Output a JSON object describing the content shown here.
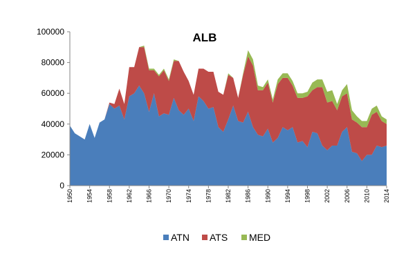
{
  "chart_data": {
    "type": "area",
    "stacked": true,
    "title": "ALB",
    "xlabel": "",
    "ylabel": "",
    "ylim": [
      0,
      100000
    ],
    "y_ticks": [
      "0",
      "20000",
      "40000",
      "60000",
      "80000",
      "100000"
    ],
    "x_ticks": [
      "1950",
      "1954",
      "1958",
      "1962",
      "1966",
      "1970",
      "1974",
      "1978",
      "1982",
      "1986",
      "1990",
      "1994",
      "1998",
      "2002",
      "2006",
      "2010",
      "2014"
    ],
    "x": [
      1950,
      1951,
      1952,
      1953,
      1954,
      1955,
      1956,
      1957,
      1958,
      1959,
      1960,
      1961,
      1962,
      1963,
      1964,
      1965,
      1966,
      1967,
      1968,
      1969,
      1970,
      1971,
      1972,
      1973,
      1974,
      1975,
      1976,
      1977,
      1978,
      1979,
      1980,
      1981,
      1982,
      1983,
      1984,
      1985,
      1986,
      1987,
      1988,
      1989,
      1990,
      1991,
      1992,
      1993,
      1994,
      1995,
      1996,
      1997,
      1998,
      1999,
      2000,
      2001,
      2002,
      2003,
      2004,
      2005,
      2006,
      2007,
      2008,
      2009,
      2010,
      2011,
      2012,
      2013,
      2014
    ],
    "grid": false,
    "legend_position": "bottom",
    "series": [
      {
        "name": "ATN",
        "color": "#4a7ebb",
        "values": [
          39000,
          34000,
          32000,
          30000,
          40000,
          31000,
          41000,
          43000,
          53000,
          50000,
          52000,
          43000,
          58000,
          60000,
          65000,
          60000,
          48000,
          60000,
          45000,
          47000,
          46000,
          57000,
          49000,
          46000,
          50000,
          42000,
          58000,
          55000,
          50000,
          51000,
          38000,
          35000,
          43000,
          52000,
          42000,
          41000,
          48000,
          38000,
          33000,
          32000,
          37000,
          28000,
          31000,
          38000,
          36000,
          38000,
          28000,
          29000,
          25000,
          35000,
          34000,
          26000,
          23000,
          26000,
          26000,
          35000,
          38000,
          22000,
          21000,
          16000,
          20000,
          20000,
          26000,
          25000,
          26000
        ]
      },
      {
        "name": "ATS",
        "color": "#be4b48",
        "values": [
          0,
          0,
          0,
          0,
          0,
          0,
          0,
          0,
          1000,
          3000,
          11000,
          10000,
          19000,
          17000,
          25000,
          30000,
          27000,
          15000,
          26000,
          28000,
          22000,
          24000,
          32000,
          28000,
          18000,
          17000,
          18000,
          21000,
          24000,
          23000,
          23000,
          24000,
          29000,
          18000,
          15000,
          31000,
          36000,
          40000,
          29000,
          30000,
          30000,
          26000,
          35000,
          32000,
          34000,
          27000,
          29000,
          28000,
          33000,
          27000,
          30000,
          38000,
          31000,
          29000,
          23000,
          23000,
          22000,
          21000,
          20000,
          22000,
          18000,
          26000,
          22000,
          17000,
          14000
        ]
      },
      {
        "name": "MED",
        "color": "#98b954",
        "values": [
          0,
          0,
          0,
          0,
          0,
          0,
          0,
          0,
          0,
          0,
          0,
          0,
          0,
          0,
          0,
          1000,
          1000,
          1000,
          1000,
          1000,
          1000,
          1000,
          0,
          0,
          0,
          0,
          0,
          0,
          0,
          0,
          0,
          0,
          1000,
          0,
          0,
          1000,
          4000,
          4000,
          3000,
          2000,
          2000,
          2000,
          3000,
          3000,
          3000,
          3000,
          3000,
          3000,
          3000,
          5000,
          5000,
          5000,
          7000,
          7000,
          4000,
          4000,
          6000,
          6000,
          4000,
          4000,
          4000,
          4000,
          4000,
          3000,
          3000
        ]
      }
    ]
  }
}
